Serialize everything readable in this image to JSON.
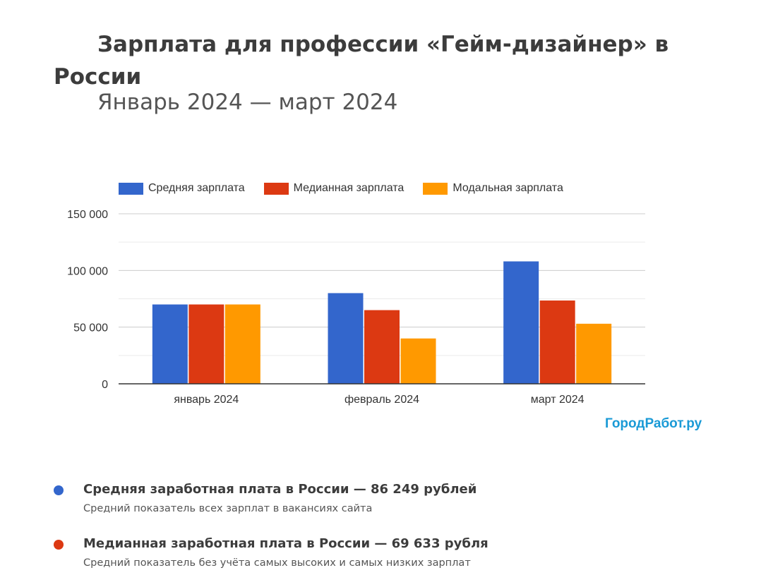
{
  "header": {
    "title": "Зарплата для профессии «Гейм-дизайнер» в России",
    "subtitle": "Январь 2024 — март 2024"
  },
  "brand": "ГородРабот.ру",
  "colors": {
    "avg": "#3366cc",
    "median": "#dc3912",
    "mode": "#ff9900",
    "brand": "#1a9ad6"
  },
  "chart_data": {
    "type": "bar",
    "categories": [
      "январь 2024",
      "февраль 2024",
      "март 2024"
    ],
    "series": [
      {
        "name": "Средняя зарплата",
        "color": "#3366cc",
        "values": [
          70000,
          80000,
          108000
        ]
      },
      {
        "name": "Медианная зарплата",
        "color": "#dc3912",
        "values": [
          70000,
          65000,
          73500
        ]
      },
      {
        "name": "Модальная зарплата",
        "color": "#ff9900",
        "values": [
          70000,
          40000,
          53000
        ]
      }
    ],
    "ylim": [
      0,
      150000
    ],
    "yticks": [
      0,
      50000,
      100000,
      150000
    ],
    "ytick_labels": [
      "0",
      "50 000",
      "100 000",
      "150 000"
    ],
    "grid": true,
    "legend": "top"
  },
  "stats": [
    {
      "title": "Средняя заработная плата в России — 86 249 рублей",
      "desc": "Средний показатель всех зарплат в вакансиях сайта",
      "color": "#3366cc"
    },
    {
      "title": "Медианная заработная плата в России — 69 633 рубля",
      "desc": "Средний показатель без учёта самых высоких и самых низких зарплат",
      "color": "#dc3912"
    }
  ]
}
